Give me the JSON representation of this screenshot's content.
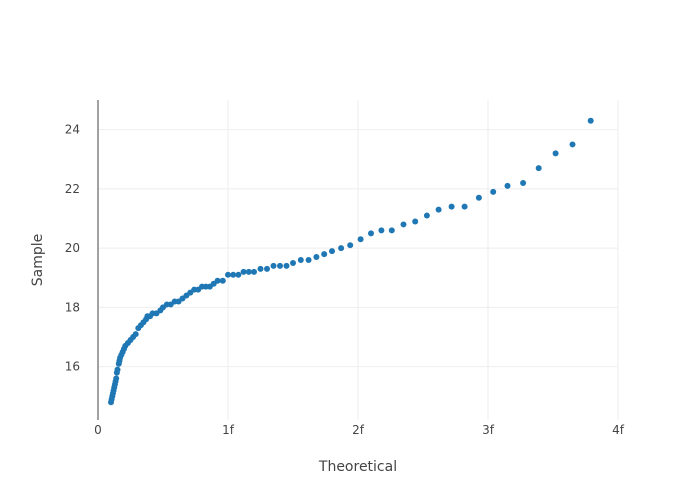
{
  "chart_data": {
    "type": "scatter",
    "title": "",
    "xlabel": "Theoretical",
    "ylabel": "Sample",
    "xlim": [
      0,
      4
    ],
    "ylim": [
      14.2,
      25
    ],
    "grid": true,
    "x_ticks": [
      {
        "value": 0,
        "label": "0"
      },
      {
        "value": 1,
        "label": "1f"
      },
      {
        "value": 2,
        "label": "2f"
      },
      {
        "value": 3,
        "label": "3f"
      },
      {
        "value": 4,
        "label": "4f"
      }
    ],
    "y_ticks": [
      {
        "value": 16,
        "label": "16"
      },
      {
        "value": 18,
        "label": "18"
      },
      {
        "value": 20,
        "label": "20"
      },
      {
        "value": 22,
        "label": "22"
      },
      {
        "value": 24,
        "label": "24"
      }
    ],
    "marker_color": "#1f77b4",
    "series": [
      {
        "points": [
          [
            0.1,
            14.8
          ],
          [
            0.105,
            14.9
          ],
          [
            0.11,
            15.0
          ],
          [
            0.115,
            15.1
          ],
          [
            0.12,
            15.2
          ],
          [
            0.125,
            15.3
          ],
          [
            0.13,
            15.4
          ],
          [
            0.135,
            15.5
          ],
          [
            0.14,
            15.6
          ],
          [
            0.145,
            15.8
          ],
          [
            0.15,
            15.9
          ],
          [
            0.16,
            16.1
          ],
          [
            0.165,
            16.2
          ],
          [
            0.17,
            16.3
          ],
          [
            0.18,
            16.4
          ],
          [
            0.19,
            16.5
          ],
          [
            0.2,
            16.6
          ],
          [
            0.21,
            16.7
          ],
          [
            0.23,
            16.8
          ],
          [
            0.25,
            16.9
          ],
          [
            0.27,
            17.0
          ],
          [
            0.29,
            17.1
          ],
          [
            0.31,
            17.3
          ],
          [
            0.33,
            17.4
          ],
          [
            0.35,
            17.5
          ],
          [
            0.37,
            17.6
          ],
          [
            0.38,
            17.7
          ],
          [
            0.4,
            17.7
          ],
          [
            0.42,
            17.8
          ],
          [
            0.45,
            17.8
          ],
          [
            0.48,
            17.9
          ],
          [
            0.5,
            18.0
          ],
          [
            0.53,
            18.1
          ],
          [
            0.56,
            18.1
          ],
          [
            0.59,
            18.2
          ],
          [
            0.62,
            18.2
          ],
          [
            0.65,
            18.3
          ],
          [
            0.68,
            18.4
          ],
          [
            0.71,
            18.5
          ],
          [
            0.74,
            18.6
          ],
          [
            0.77,
            18.6
          ],
          [
            0.8,
            18.7
          ],
          [
            0.83,
            18.7
          ],
          [
            0.86,
            18.7
          ],
          [
            0.89,
            18.8
          ],
          [
            0.92,
            18.9
          ],
          [
            0.96,
            18.9
          ],
          [
            1.0,
            19.1
          ],
          [
            1.04,
            19.1
          ],
          [
            1.08,
            19.1
          ],
          [
            1.12,
            19.2
          ],
          [
            1.16,
            19.2
          ],
          [
            1.2,
            19.2
          ],
          [
            1.25,
            19.3
          ],
          [
            1.3,
            19.3
          ],
          [
            1.35,
            19.4
          ],
          [
            1.4,
            19.4
          ],
          [
            1.45,
            19.4
          ],
          [
            1.5,
            19.5
          ],
          [
            1.56,
            19.6
          ],
          [
            1.62,
            19.6
          ],
          [
            1.68,
            19.7
          ],
          [
            1.74,
            19.8
          ],
          [
            1.8,
            19.9
          ],
          [
            1.87,
            20.0
          ],
          [
            1.94,
            20.1
          ],
          [
            2.02,
            20.3
          ],
          [
            2.1,
            20.5
          ],
          [
            2.18,
            20.6
          ],
          [
            2.26,
            20.6
          ],
          [
            2.35,
            20.8
          ],
          [
            2.44,
            20.9
          ],
          [
            2.53,
            21.1
          ],
          [
            2.62,
            21.3
          ],
          [
            2.72,
            21.4
          ],
          [
            2.82,
            21.4
          ],
          [
            2.93,
            21.7
          ],
          [
            3.04,
            21.9
          ],
          [
            3.15,
            22.1
          ],
          [
            3.27,
            22.2
          ],
          [
            3.39,
            22.7
          ],
          [
            3.52,
            23.2
          ],
          [
            3.65,
            23.5
          ],
          [
            3.79,
            24.3
          ]
        ]
      }
    ]
  }
}
